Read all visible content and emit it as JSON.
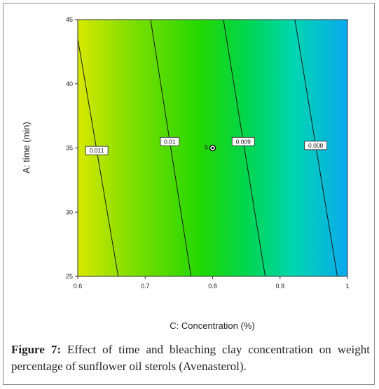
{
  "chart_data": {
    "type": "heatmap",
    "subtype": "contour",
    "xlabel": "C: Concentration (%)",
    "ylabel": "A: time (min)",
    "xlim": [
      0.6,
      1.0
    ],
    "ylim": [
      25,
      45
    ],
    "x_ticks": [
      "0.6",
      "0.7",
      "0.8",
      "0.9",
      "1"
    ],
    "y_ticks": [
      "25",
      "30",
      "35",
      "40",
      "45"
    ],
    "color_scale": [
      "#d8e800",
      "#7fde00",
      "#24d800",
      "#00d64a",
      "#00d6b0",
      "#0aa9ee"
    ],
    "contours": [
      {
        "label": "0.011",
        "value": 0.011,
        "bottom_x": 0.66,
        "top_x": 0.6,
        "top_y": 43.5
      },
      {
        "label": "0.01",
        "value": 0.01,
        "bottom_x": 0.768,
        "top_x": 0.708,
        "top_y": 45
      },
      {
        "label": "0.009",
        "value": 0.009,
        "bottom_x": 0.878,
        "top_x": 0.816,
        "top_y": 45
      },
      {
        "label": "0.008",
        "value": 0.008,
        "bottom_x": 0.985,
        "top_x": 0.922,
        "top_y": 45
      }
    ],
    "design_point": {
      "x": 0.8,
      "y": 35,
      "replicates_label": "5"
    }
  },
  "caption": {
    "figure_label": "Figure 7:",
    "text": " Effect of time and bleaching clay concentration on weight percentage of sunflower oil sterols (Avenasterol)."
  }
}
